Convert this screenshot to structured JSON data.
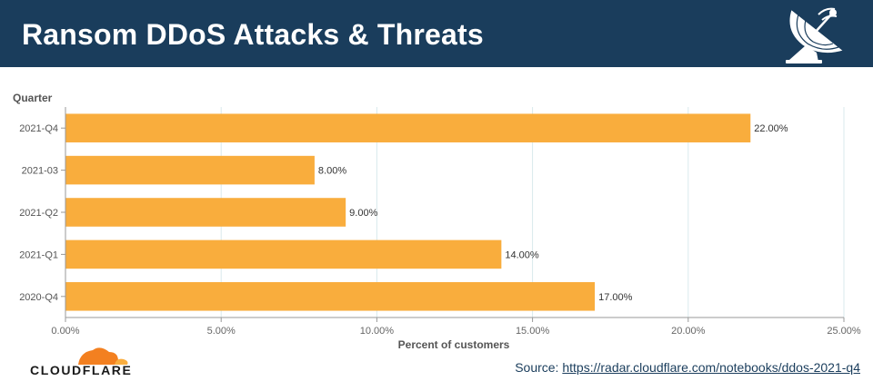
{
  "header": {
    "title": "Ransom DDoS Attacks & Threats",
    "icon": "satellite-dish-icon"
  },
  "colors": {
    "header_bg": "#1a3d5c",
    "bar": "#f9ad3d",
    "grid": "#d9e9ec"
  },
  "chart_data": {
    "type": "bar",
    "orientation": "horizontal",
    "ylabel": "Quarter",
    "xlabel": "Percent of customers",
    "categories": [
      "2021-Q4",
      "2021-03",
      "2021-Q2",
      "2021-Q1",
      "2020-Q4"
    ],
    "values": [
      22.0,
      8.0,
      9.0,
      14.0,
      17.0
    ],
    "value_labels": [
      "22.00%",
      "8.00%",
      "9.00%",
      "14.00%",
      "17.00%"
    ],
    "xlim": [
      0,
      25
    ],
    "xticks": [
      0,
      5,
      10,
      15,
      20,
      25
    ],
    "xtick_labels": [
      "0.00%",
      "5.00%",
      "10.00%",
      "15.00%",
      "20.00%",
      "25.00%"
    ],
    "grid": true,
    "legend": "none"
  },
  "footer": {
    "logo_text": "CLOUDFLARE",
    "source_prefix": "Source: ",
    "source_link": "https://radar.cloudflare.com/notebooks/ddos-2021-q4"
  }
}
